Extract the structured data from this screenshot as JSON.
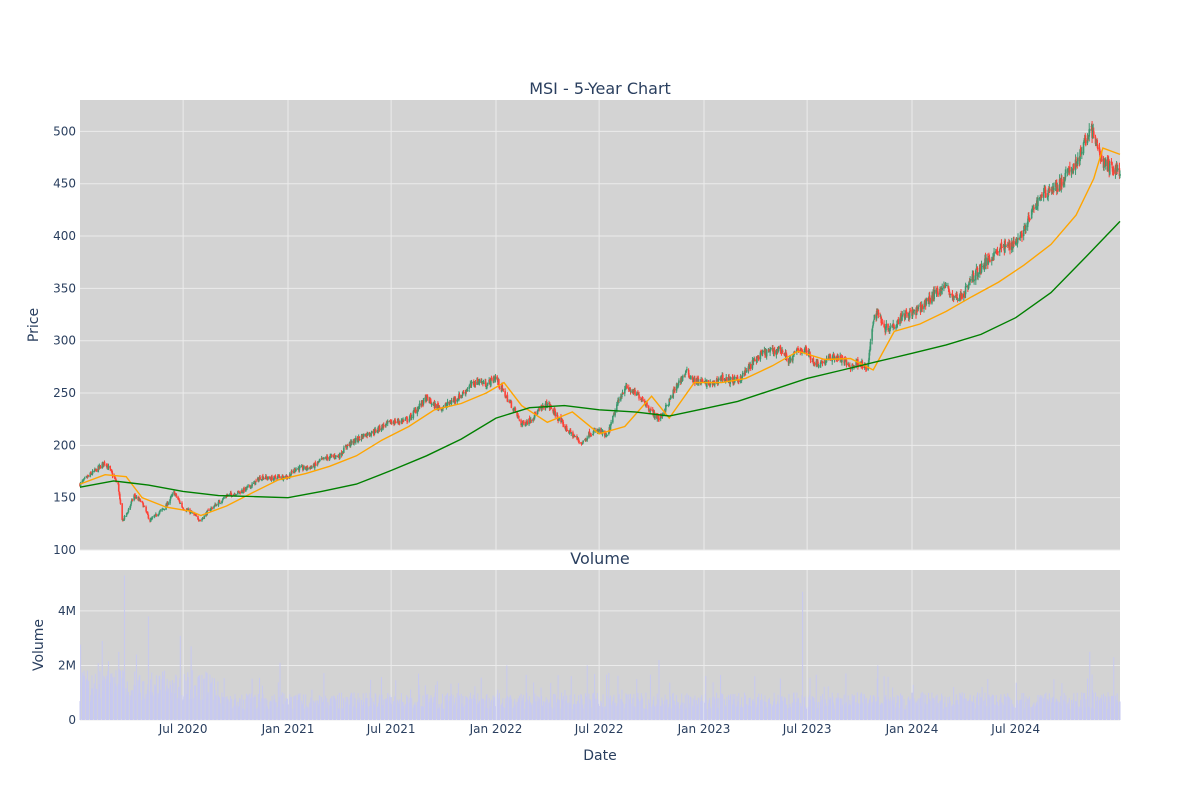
{
  "chart_data": [
    {
      "type": "candlestick",
      "title": "MSI - 5-Year Chart",
      "ylabel": "Price",
      "ylim": [
        100,
        530
      ],
      "yticks": [
        100,
        150,
        200,
        250,
        300,
        350,
        400,
        450,
        500
      ],
      "xlim": [
        "2020-01-02",
        "2024-12-31"
      ],
      "grid": true,
      "legend": "none",
      "up_color": "#3d9970",
      "down_color": "#ff4136",
      "series": [
        {
          "kind": "ohlc",
          "description": "daily candlesticks, weekly anchor closes (interpolated)",
          "dates": [
            "2020-01-02",
            "2020-01-20",
            "2020-02-03",
            "2020-02-15",
            "2020-02-24",
            "2020-03-09",
            "2020-03-16",
            "2020-03-23",
            "2020-04-06",
            "2020-04-20",
            "2020-05-04",
            "2020-05-18",
            "2020-06-01",
            "2020-06-15",
            "2020-07-01",
            "2020-07-15",
            "2020-08-01",
            "2020-08-15",
            "2020-09-01",
            "2020-09-15",
            "2020-10-01",
            "2020-10-15",
            "2020-11-01",
            "2020-11-15",
            "2020-12-01",
            "2020-12-15",
            "2021-01-01",
            "2021-01-15",
            "2021-02-01",
            "2021-02-15",
            "2021-03-01",
            "2021-03-15",
            "2021-04-01",
            "2021-04-15",
            "2021-05-01",
            "2021-05-15",
            "2021-06-01",
            "2021-06-15",
            "2021-07-01",
            "2021-07-15",
            "2021-08-01",
            "2021-08-15",
            "2021-09-01",
            "2021-09-15",
            "2021-10-01",
            "2021-10-15",
            "2021-11-01",
            "2021-11-15",
            "2021-12-01",
            "2021-12-15",
            "2021-12-31",
            "2022-01-15",
            "2022-02-01",
            "2022-02-15",
            "2022-03-01",
            "2022-03-15",
            "2022-04-01",
            "2022-04-15",
            "2022-05-01",
            "2022-05-15",
            "2022-06-01",
            "2022-06-15",
            "2022-07-01",
            "2022-07-15",
            "2022-08-01",
            "2022-08-15",
            "2022-09-01",
            "2022-09-15",
            "2022-10-01",
            "2022-10-15",
            "2022-11-01",
            "2022-11-15",
            "2022-12-01",
            "2022-12-15",
            "2023-01-01",
            "2023-01-15",
            "2023-02-01",
            "2023-02-15",
            "2023-03-01",
            "2023-03-15",
            "2023-04-01",
            "2023-04-15",
            "2023-05-01",
            "2023-05-15",
            "2023-06-01",
            "2023-06-15",
            "2023-07-01",
            "2023-07-15",
            "2023-08-01",
            "2023-08-15",
            "2023-09-01",
            "2023-09-15",
            "2023-10-01",
            "2023-10-15",
            "2023-10-25",
            "2023-11-01",
            "2023-11-15",
            "2023-12-01",
            "2023-12-15",
            "2024-01-01",
            "2024-01-15",
            "2024-02-01",
            "2024-02-15",
            "2024-03-01",
            "2024-03-15",
            "2024-04-01",
            "2024-04-15",
            "2024-05-01",
            "2024-05-15",
            "2024-06-01",
            "2024-06-15",
            "2024-07-01",
            "2024-07-15",
            "2024-08-01",
            "2024-08-15",
            "2024-09-01",
            "2024-09-15",
            "2024-10-01",
            "2024-10-15",
            "2024-11-01",
            "2024-11-08",
            "2024-11-15",
            "2024-12-01",
            "2024-12-15",
            "2024-12-31"
          ],
          "close": [
            163,
            172,
            178,
            184,
            176,
            162,
            128,
            133,
            152,
            145,
            128,
            135,
            142,
            155,
            140,
            136,
            128,
            138,
            145,
            152,
            154,
            157,
            163,
            170,
            168,
            170,
            170,
            178,
            178,
            180,
            186,
            189,
            190,
            200,
            205,
            210,
            213,
            218,
            222,
            223,
            225,
            235,
            245,
            238,
            236,
            242,
            248,
            256,
            262,
            258,
            265,
            250,
            235,
            220,
            224,
            232,
            240,
            230,
            218,
            210,
            202,
            212,
            214,
            208,
            238,
            256,
            250,
            245,
            232,
            225,
            242,
            258,
            270,
            262,
            260,
            258,
            265,
            262,
            262,
            270,
            282,
            288,
            290,
            292,
            280,
            292,
            290,
            278,
            280,
            285,
            282,
            275,
            280,
            272,
            320,
            328,
            312,
            315,
            325,
            326,
            330,
            340,
            348,
            352,
            340,
            345,
            360,
            370,
            378,
            388,
            390,
            395,
            405,
            425,
            440,
            445,
            448,
            460,
            470,
            490,
            505,
            495,
            470,
            465,
            462
          ]
        },
        {
          "name": "",
          "kind": "moving-average",
          "color": "#ffa500",
          "window": "short",
          "x": [
            "2020-01-02",
            "2020-02-15",
            "2020-03-23",
            "2020-04-20",
            "2020-06-01",
            "2020-07-15",
            "2020-08-01",
            "2020-09-15",
            "2020-11-01",
            "2020-12-15",
            "2021-02-01",
            "2021-03-15",
            "2021-05-01",
            "2021-06-15",
            "2021-08-01",
            "2021-09-15",
            "2021-11-01",
            "2021-12-15",
            "2022-01-15",
            "2022-02-15",
            "2022-04-01",
            "2022-05-15",
            "2022-07-01",
            "2022-08-15",
            "2022-10-01",
            "2022-11-01",
            "2022-12-15",
            "2023-02-01",
            "2023-03-15",
            "2023-05-01",
            "2023-06-15",
            "2023-08-01",
            "2023-09-15",
            "2023-10-25",
            "2023-12-01",
            "2024-01-15",
            "2024-03-01",
            "2024-04-15",
            "2024-06-01",
            "2024-07-15",
            "2024-09-01",
            "2024-10-15",
            "2024-11-15",
            "2024-12-01",
            "2024-12-31"
          ],
          "y": [
            163,
            172,
            170,
            150,
            141,
            137,
            133,
            142,
            155,
            167,
            173,
            180,
            190,
            205,
            218,
            234,
            240,
            250,
            260,
            238,
            222,
            232,
            211,
            218,
            247,
            226,
            260,
            260,
            264,
            276,
            290,
            282,
            283,
            272,
            309,
            316,
            328,
            342,
            356,
            372,
            392,
            420,
            455,
            484,
            478
          ]
        },
        {
          "name": "",
          "kind": "moving-average",
          "color": "#008000",
          "window": "long",
          "x": [
            "2020-01-02",
            "2020-03-01",
            "2020-05-01",
            "2020-07-01",
            "2020-09-01",
            "2020-11-01",
            "2021-01-01",
            "2021-03-01",
            "2021-05-01",
            "2021-07-01",
            "2021-09-01",
            "2021-11-01",
            "2022-01-01",
            "2022-03-01",
            "2022-05-01",
            "2022-07-01",
            "2022-09-01",
            "2022-11-01",
            "2023-01-01",
            "2023-03-01",
            "2023-05-01",
            "2023-07-01",
            "2023-09-01",
            "2023-11-01",
            "2024-01-01",
            "2024-03-01",
            "2024-05-01",
            "2024-07-01",
            "2024-09-01",
            "2024-11-01",
            "2024-12-31"
          ],
          "y": [
            160,
            166,
            162,
            156,
            152,
            151,
            150,
            156,
            163,
            176,
            190,
            206,
            226,
            236,
            238,
            234,
            232,
            228,
            235,
            242,
            253,
            264,
            272,
            280,
            288,
            296,
            306,
            322,
            346,
            380,
            414
          ]
        }
      ]
    },
    {
      "type": "bar",
      "title": "Volume",
      "ylabel": "Volume",
      "xlabel": "Date",
      "ylim": [
        0,
        5500000
      ],
      "yticks": [
        "0",
        "2M",
        "4M"
      ],
      "ytick_values": [
        0,
        2000000,
        4000000
      ],
      "xticks": [
        "Jul 2020",
        "Jan 2021",
        "Jul 2021",
        "Jan 2022",
        "Jul 2022",
        "Jan 2023",
        "Jul 2023",
        "Jan 2024",
        "Jul 2024"
      ],
      "xtick_dates": [
        "2020-07-01",
        "2021-01-01",
        "2021-07-01",
        "2022-01-01",
        "2022-07-01",
        "2023-01-01",
        "2023-07-01",
        "2024-01-01",
        "2024-07-01"
      ],
      "bar_color": "#c7c9f0",
      "grid": true,
      "peaks": [
        {
          "date": "2020-03-20",
          "value": 5300000
        },
        {
          "date": "2020-05-01",
          "value": 3800000
        },
        {
          "date": "2020-02-10",
          "value": 2900000
        },
        {
          "date": "2020-07-15",
          "value": 2700000
        },
        {
          "date": "2020-12-18",
          "value": 2100000
        },
        {
          "date": "2022-01-20",
          "value": 2000000
        },
        {
          "date": "2022-06-10",
          "value": 2000000
        },
        {
          "date": "2022-10-14",
          "value": 2200000
        },
        {
          "date": "2023-06-23",
          "value": 4700000
        },
        {
          "date": "2023-11-02",
          "value": 2000000
        },
        {
          "date": "2024-11-08",
          "value": 2500000
        },
        {
          "date": "2024-12-20",
          "value": 2300000
        }
      ],
      "typical_value": 700000
    }
  ],
  "chart": {
    "title": "MSI - 5-Year Chart",
    "price_axis_title": "Price",
    "volume_title": "Volume",
    "volume_axis_title": "Volume",
    "x_axis_title": "Date"
  }
}
